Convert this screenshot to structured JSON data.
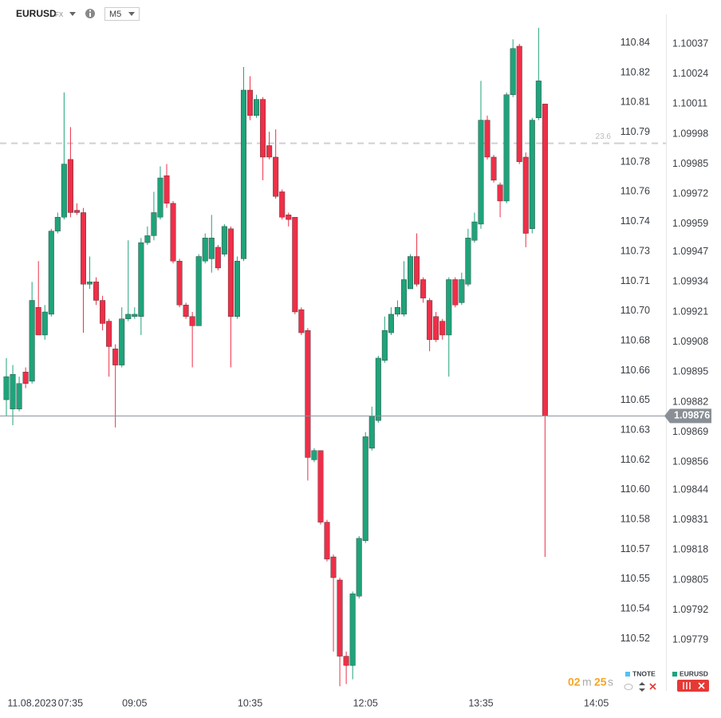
{
  "header": {
    "symbol": "EURUSD",
    "market": "FX",
    "timeframe": "M5"
  },
  "countdown": {
    "minutes": "02",
    "m": "m",
    "seconds": "25",
    "s": "s"
  },
  "legend": [
    {
      "name": "TNOTE",
      "color": "#4fc3f7"
    },
    {
      "name": "EURUSD",
      "color": "#1fa37a"
    }
  ],
  "chart_data": {
    "type": "candlestick",
    "up_color": "#1fa37a",
    "down_color": "#ee2f48",
    "categories": [
      null,
      null,
      null,
      null,
      "11.08.2023",
      null,
      null,
      null,
      null,
      null,
      "07:35",
      null,
      null,
      null,
      null,
      null,
      null,
      null,
      null,
      null,
      "09:05",
      null,
      null,
      null,
      null,
      null,
      null,
      null,
      null,
      null,
      null,
      null,
      null,
      null,
      null,
      null,
      null,
      null,
      "10:35",
      null,
      null,
      null,
      null,
      null,
      null,
      null,
      null,
      null,
      null,
      null,
      null,
      null,
      null,
      null,
      null,
      null,
      "12:05",
      null,
      null,
      null,
      null,
      null,
      null,
      null,
      null,
      null,
      null,
      null,
      null,
      null,
      null,
      null,
      null,
      null,
      "13:35",
      null,
      null,
      null,
      null,
      null,
      null,
      null,
      null,
      null,
      null,
      null,
      null,
      null,
      null,
      null,
      null,
      null,
      "14:05"
    ],
    "open": [
      1.09883,
      1.09879,
      1.09879,
      1.09895,
      1.09891,
      1.09923,
      1.09911,
      1.0992,
      1.09956,
      1.09962,
      1.09987,
      1.09965,
      1.09964,
      1.09933,
      1.09934,
      1.09926,
      1.09917,
      1.09905,
      1.09898,
      1.09918,
      1.09919,
      1.09919,
      1.09951,
      1.09954,
      1.09962,
      1.0998,
      1.09968,
      1.09943,
      1.09924,
      1.09919,
      1.09915,
      1.09943,
      1.09944,
      1.09949,
      1.09946,
      1.09957,
      1.09919,
      1.09944,
      1.10017,
      1.10006,
      1.10013,
      1.09993,
      1.09988,
      1.09973,
      1.09963,
      1.09962,
      1.09922,
      1.09913,
      1.09857,
      1.09861,
      1.0983,
      1.09815,
      1.09805,
      1.09772,
      1.09768,
      1.09798,
      1.09822,
      1.09862,
      1.09874,
      1.099,
      1.09912,
      1.0992,
      1.0992,
      1.09931,
      1.09945,
      1.09935,
      1.09926,
      1.09919,
      1.09917,
      1.09911,
      1.09935,
      1.09925,
      1.09933,
      1.09952,
      1.09959,
      1.10004,
      1.09988,
      1.09976,
      1.09969,
      1.10015,
      1.10036,
      1.09988,
      1.09957,
      1.10005,
      1.10011,
      null,
      null,
      null,
      null,
      null,
      null,
      null,
      null
    ],
    "high": [
      1.09901,
      1.09898,
      1.09893,
      1.09897,
      1.09934,
      1.09943,
      1.09924,
      1.09957,
      1.09964,
      1.10016,
      1.10001,
      1.09968,
      1.09966,
      1.09945,
      1.09936,
      1.09928,
      1.09918,
      1.09907,
      1.09923,
      1.09952,
      1.09923,
      1.09953,
      1.09958,
      1.09973,
      1.09984,
      1.09985,
      1.09969,
      1.09944,
      1.09925,
      1.09921,
      1.09946,
      1.09955,
      1.09963,
      1.0995,
      1.09959,
      1.09958,
      1.09945,
      1.10027,
      1.10023,
      1.10015,
      1.10014,
      1.09999,
      1.1,
      1.09974,
      1.09964,
      1.09962,
      1.09923,
      1.09914,
      1.09862,
      1.09861,
      1.09831,
      1.09816,
      1.09806,
      1.09774,
      1.098,
      1.09824,
      1.09869,
      1.0988,
      1.09902,
      1.09919,
      1.09923,
      1.09926,
      1.09943,
      1.09946,
      1.09955,
      1.09936,
      1.09927,
      1.09921,
      1.09918,
      1.09936,
      1.09936,
      1.09938,
      1.09957,
      1.09964,
      1.10021,
      1.10006,
      1.09989,
      1.09977,
      1.10016,
      1.10039,
      1.10037,
      1.0999,
      1.10005,
      1.10044,
      1.10011,
      null,
      null,
      null,
      null,
      null,
      null,
      null,
      null
    ],
    "low": [
      1.09876,
      1.09872,
      1.09878,
      1.09888,
      1.0989,
      1.09911,
      1.09909,
      1.09919,
      1.09955,
      1.09961,
      1.09962,
      1.09963,
      1.09912,
      1.09931,
      1.09924,
      1.09913,
      1.09893,
      1.09871,
      1.09897,
      1.09917,
      1.09918,
      1.09911,
      1.0995,
      1.09952,
      1.09961,
      1.09966,
      1.09942,
      1.09923,
      1.09918,
      1.09897,
      1.09915,
      1.09942,
      1.09938,
      1.09939,
      1.09945,
      1.09897,
      1.09918,
      1.09943,
      1.10004,
      1.10005,
      1.09978,
      1.09987,
      1.0997,
      1.09961,
      1.09958,
      1.0992,
      1.09911,
      1.09848,
      1.09856,
      1.09829,
      1.09813,
      1.09774,
      1.09759,
      1.0976,
      1.09762,
      1.09797,
      1.09821,
      1.09861,
      1.09873,
      1.09899,
      1.09911,
      1.09919,
      1.09919,
      1.09931,
      1.09932,
      1.09925,
      1.09904,
      1.09908,
      1.09909,
      1.09893,
      1.09923,
      1.09924,
      1.09932,
      1.09951,
      1.09957,
      1.09987,
      1.09977,
      1.09962,
      1.09968,
      1.10014,
      1.09985,
      1.09949,
      1.09955,
      1.10004,
      1.09815,
      null,
      null,
      null,
      null,
      null,
      null,
      null,
      null
    ],
    "close": [
      1.09893,
      1.09894,
      1.0989,
      1.0989,
      1.09926,
      1.09911,
      1.09921,
      1.09956,
      1.09962,
      1.09985,
      1.09964,
      1.09964,
      1.09933,
      1.09934,
      1.09926,
      1.09916,
      1.09906,
      1.09898,
      1.09918,
      1.0992,
      1.0992,
      1.09951,
      1.09954,
      1.09964,
      1.09979,
      1.09968,
      1.09943,
      1.09924,
      1.09919,
      1.09915,
      1.09945,
      1.09953,
      1.09953,
      1.0994,
      1.09958,
      1.09919,
      1.09943,
      1.10017,
      1.10006,
      1.10013,
      1.09988,
      1.09988,
      1.09971,
      1.09962,
      1.09961,
      1.09921,
      1.09912,
      1.09858,
      1.09861,
      1.0983,
      1.09814,
      1.09806,
      1.09772,
      1.09768,
      1.09799,
      1.09823,
      1.09867,
      1.09876,
      1.09901,
      1.09913,
      1.0992,
      1.09923,
      1.09935,
      1.09945,
      1.09933,
      1.09927,
      1.09909,
      1.09909,
      1.09911,
      1.09935,
      1.09924,
      1.09935,
      1.09953,
      1.0996,
      1.10004,
      1.09988,
      1.09978,
      1.09969,
      1.10015,
      1.10035,
      1.09986,
      1.09955,
      1.10004,
      1.10021,
      1.09876,
      null,
      null,
      null,
      null,
      null,
      null,
      null,
      null
    ],
    "ylim": [
      1.09757,
      1.10056
    ],
    "yticks": [
      1.10037,
      1.10024,
      1.10011,
      1.09998,
      1.09985,
      1.09972,
      1.09959,
      1.09947,
      1.09934,
      1.09921,
      1.09908,
      1.09895,
      1.09882,
      1.09869,
      1.09856,
      1.09844,
      1.09831,
      1.09818,
      1.09805,
      1.09792,
      1.09779
    ],
    "y2lim": [
      110.492,
      110.863
    ],
    "y2ticks": [
      {
        "value": 110.84,
        "label": "110.84"
      },
      {
        "value": 110.824,
        "label": "110.82"
      },
      {
        "value": 110.808,
        "label": "110.81"
      },
      {
        "value": 110.792,
        "label": "110.79"
      },
      {
        "value": 110.776,
        "label": "110.78"
      },
      {
        "value": 110.76,
        "label": "110.76"
      },
      {
        "value": 110.744,
        "label": "110.74"
      },
      {
        "value": 110.728,
        "label": "110.73"
      },
      {
        "value": 110.712,
        "label": "110.71"
      },
      {
        "value": 110.696,
        "label": "110.70"
      },
      {
        "value": 110.68,
        "label": "110.68"
      },
      {
        "value": 110.664,
        "label": "110.66"
      },
      {
        "value": 110.648,
        "label": "110.65"
      },
      {
        "value": 110.632,
        "label": "110.63"
      },
      {
        "value": 110.616,
        "label": "110.62"
      },
      {
        "value": 110.6,
        "label": "110.60"
      },
      {
        "value": 110.584,
        "label": "110.58"
      },
      {
        "value": 110.568,
        "label": "110.57"
      },
      {
        "value": 110.552,
        "label": "110.55"
      },
      {
        "value": 110.536,
        "label": "110.54"
      },
      {
        "value": 110.52,
        "label": "110.52"
      }
    ],
    "current_price": 1.09876,
    "fib_level": {
      "label": "23.6",
      "value": 1.09994
    }
  }
}
